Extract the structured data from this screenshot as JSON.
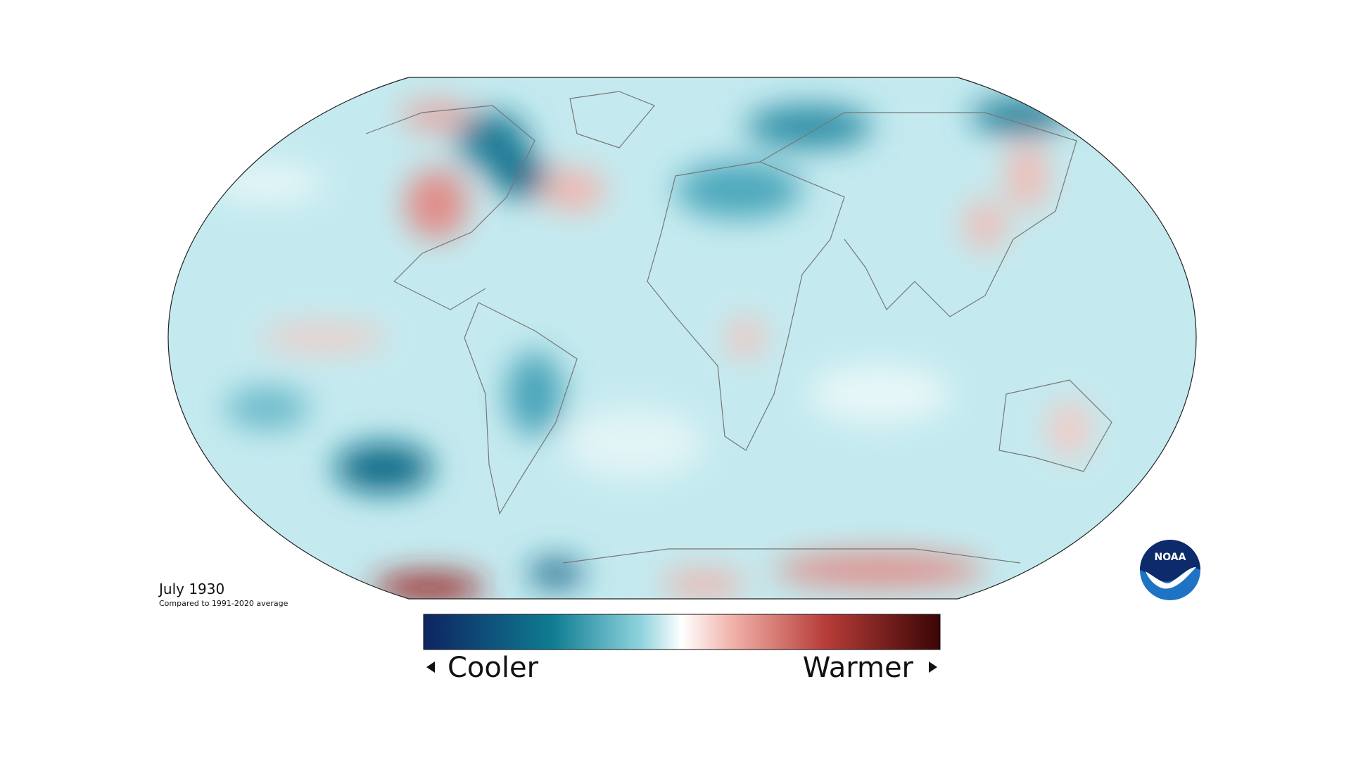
{
  "title": "July 1930",
  "subtitle": "Compared to 1991-2020 average",
  "legend": {
    "low": "Cooler",
    "high": "Warmer"
  },
  "logo": "NOAA"
}
